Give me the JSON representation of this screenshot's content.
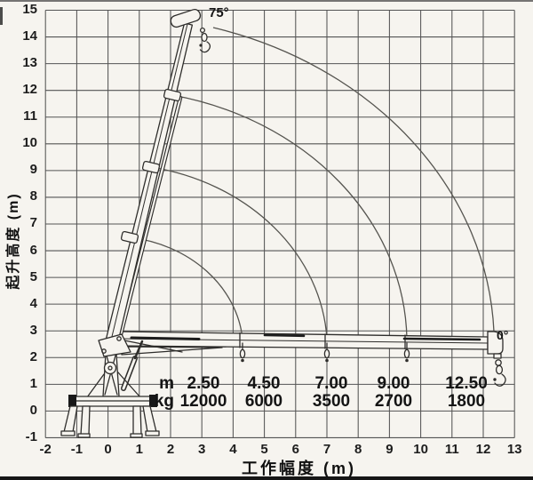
{
  "axes": {
    "x": {
      "title": "工作幅度 (m)",
      "ticks": [
        -2,
        -1,
        0,
        1,
        2,
        3,
        4,
        5,
        6,
        7,
        8,
        9,
        10,
        11,
        12,
        13
      ]
    },
    "y": {
      "title": "起升高度 (m)",
      "ticks": [
        15,
        14,
        13,
        12,
        11,
        10,
        9,
        8,
        7,
        6,
        5,
        4,
        3,
        2,
        1,
        0,
        -1
      ]
    }
  },
  "angle_labels": {
    "max": "75°",
    "min": "0°"
  },
  "load_table": {
    "row1_label": "m",
    "row2_label": "kg",
    "radius_m": [
      "2.50",
      "4.50",
      "7.00",
      "9.00",
      "12.50"
    ],
    "capacity_kg": [
      "12000",
      "6000",
      "3500",
      "2700",
      "1800"
    ]
  },
  "chart_data": {
    "type": "line",
    "title": "",
    "xlabel": "工作幅度 (m)",
    "ylabel": "起升高度 (m)",
    "xlim": [
      -2,
      13
    ],
    "ylim": [
      -1,
      15
    ],
    "grid": true,
    "boom_angle_range_deg": [
      0,
      75
    ],
    "boom_angle_labels": [
      "75°",
      "0°"
    ],
    "tip_path_arcs": [
      {
        "radius_m": 4.2,
        "from_xy": [
          4.3,
          2.4
        ],
        "to_xy": [
          0.7,
          6.6
        ]
      },
      {
        "radius_m": 6.9,
        "from_xy": [
          7.0,
          2.4
        ],
        "to_xy": [
          1.3,
          9.2
        ]
      },
      {
        "radius_m": 9.5,
        "from_xy": [
          9.5,
          2.4
        ],
        "to_xy": [
          2.0,
          11.9
        ]
      },
      {
        "radius_m": 12.3,
        "from_xy": [
          12.4,
          2.8
        ],
        "to_xy": [
          3.3,
          14.4
        ]
      }
    ],
    "load_chart": {
      "radius_m": [
        2.5,
        4.5,
        7.0,
        9.0,
        12.5
      ],
      "capacity_kg": [
        12000,
        6000,
        3500,
        2700,
        1800
      ]
    }
  }
}
